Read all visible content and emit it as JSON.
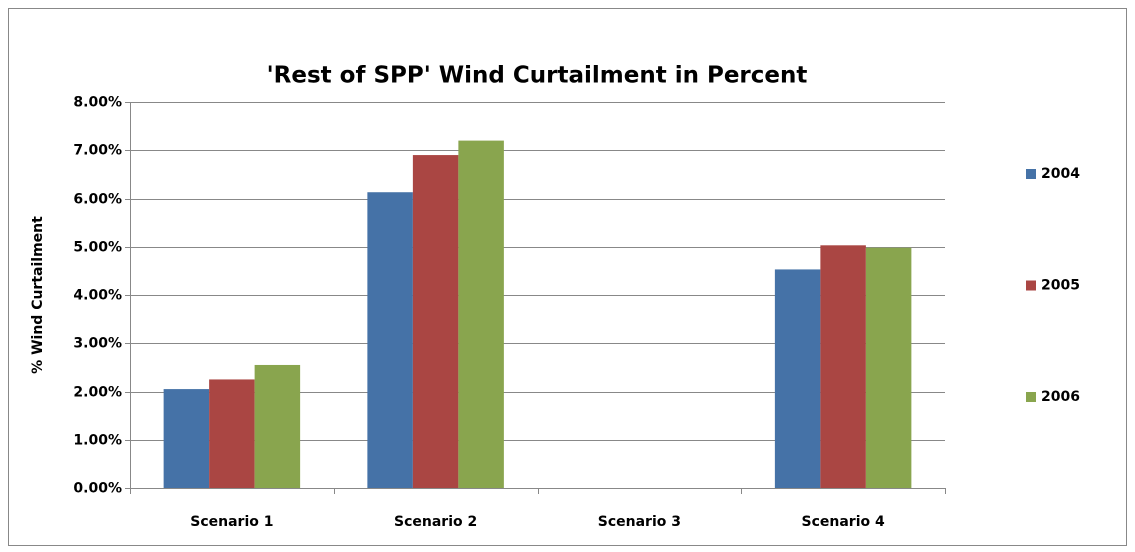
{
  "chart_data": {
    "type": "bar",
    "title": "'Rest of SPP' Wind Curtailment in Percent",
    "y_label": "% Wind Curtailment",
    "categories": [
      "Scenario 1",
      "Scenario 2",
      "Scenario 3",
      "Scenario 4"
    ],
    "series": [
      {
        "name": "2004",
        "color": "#4572a7",
        "values": [
          2.05,
          6.13,
          0,
          4.53
        ]
      },
      {
        "name": "2005",
        "color": "#aa4643",
        "values": [
          2.25,
          6.9,
          0,
          5.03
        ]
      },
      {
        "name": "2006",
        "color": "#89a54e",
        "values": [
          2.55,
          7.2,
          0,
          4.98
        ]
      }
    ],
    "ylim": [
      0,
      8
    ],
    "yticks": [
      {
        "value": 0,
        "label": "0.00%"
      },
      {
        "value": 1,
        "label": "1.00%"
      },
      {
        "value": 2,
        "label": "2.00%"
      },
      {
        "value": 3,
        "label": "3.00%"
      },
      {
        "value": 4,
        "label": "4.00%"
      },
      {
        "value": 5,
        "label": "5.00%"
      },
      {
        "value": 6,
        "label": "6.00%"
      },
      {
        "value": 7,
        "label": "7.00%"
      },
      {
        "value": 8,
        "label": "8.00%"
      }
    ],
    "grid": true,
    "legend": "right"
  }
}
